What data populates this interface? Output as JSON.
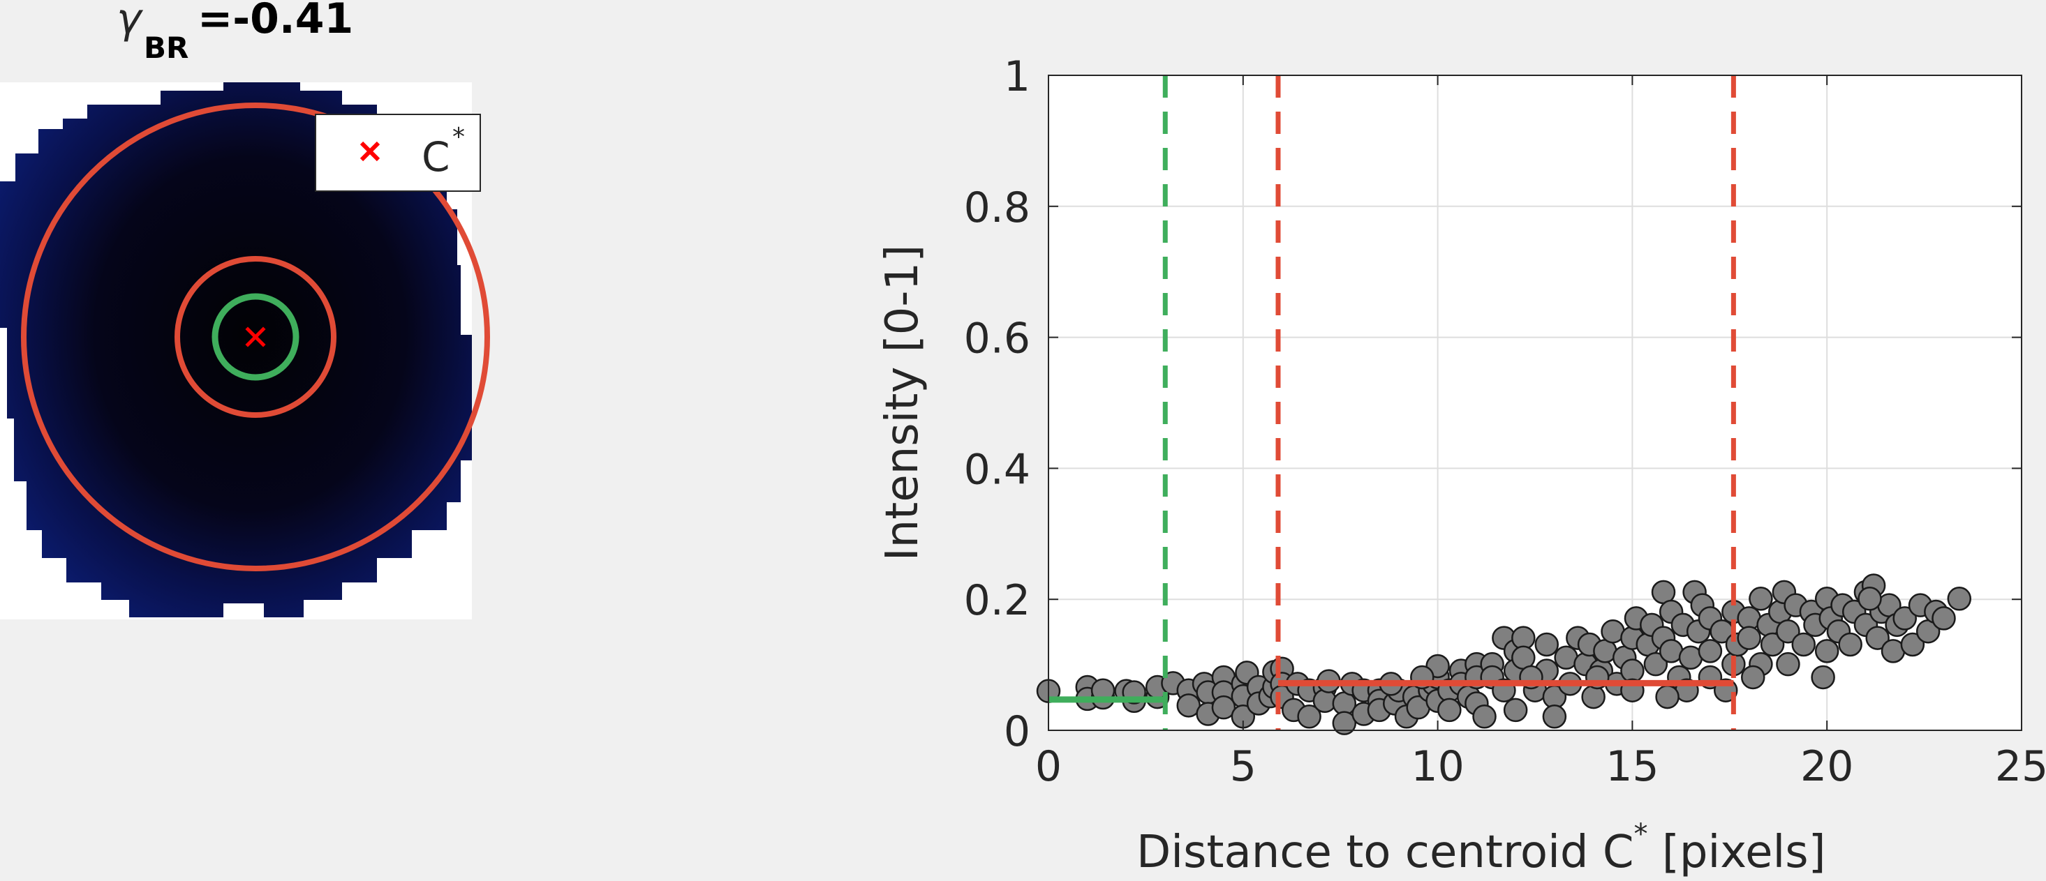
{
  "image_panel": {
    "title_symbol": "γ",
    "title_subscript": "BR",
    "title_value": "=-0.41",
    "legend_marker": "×",
    "legend_label": "C",
    "legend_label_sup": "*",
    "colors": {
      "outer_ring": "#e04b36",
      "middle_ring": "#e04b36",
      "inner_ring": "#3fae5c",
      "centroid_marker": "#ff0000",
      "blob_dark": "#04040e",
      "blob_edge": "#0b1560"
    }
  },
  "chart_data": {
    "type": "scatter",
    "title": "",
    "xlabel": "Distance to centroid C",
    "xlabel_sup": "*",
    "xlabel_suffix": " [pixels]",
    "ylabel": "Intensity [0-1]",
    "xlim": [
      0,
      25
    ],
    "ylim": [
      0,
      1
    ],
    "xticks": [
      0,
      5,
      10,
      15,
      20,
      25
    ],
    "yticks": [
      0,
      0.2,
      0.4,
      0.6,
      0.8,
      1
    ],
    "ytick_labels": [
      "0",
      "0.2",
      "0.4",
      "0.6",
      "0.8",
      "1"
    ],
    "grid": true,
    "marker_color": "#808080",
    "marker_edge": "#1a1a1a",
    "points": [
      [
        0.0,
        0.06
      ],
      [
        1.0,
        0.066
      ],
      [
        1.0,
        0.048
      ],
      [
        1.4,
        0.05
      ],
      [
        1.4,
        0.061
      ],
      [
        2.0,
        0.06
      ],
      [
        2.2,
        0.045
      ],
      [
        2.2,
        0.058
      ],
      [
        2.8,
        0.051
      ],
      [
        2.8,
        0.066
      ],
      [
        3.2,
        0.072
      ],
      [
        3.6,
        0.061
      ],
      [
        3.6,
        0.038
      ],
      [
        4.0,
        0.071
      ],
      [
        4.1,
        0.058
      ],
      [
        4.1,
        0.025
      ],
      [
        4.5,
        0.081
      ],
      [
        4.5,
        0.058
      ],
      [
        4.5,
        0.035
      ],
      [
        5.0,
        0.071
      ],
      [
        5.0,
        0.052
      ],
      [
        5.0,
        0.021
      ],
      [
        5.1,
        0.088
      ],
      [
        5.4,
        0.066
      ],
      [
        5.4,
        0.041
      ],
      [
        5.7,
        0.052
      ],
      [
        5.8,
        0.066
      ],
      [
        5.8,
        0.089
      ],
      [
        6.0,
        0.094
      ],
      [
        6.0,
        0.071
      ],
      [
        6.0,
        0.051
      ],
      [
        6.3,
        0.031
      ],
      [
        6.4,
        0.071
      ],
      [
        6.7,
        0.061
      ],
      [
        6.7,
        0.021
      ],
      [
        7.1,
        0.065
      ],
      [
        7.1,
        0.045
      ],
      [
        7.2,
        0.075
      ],
      [
        7.6,
        0.041
      ],
      [
        7.6,
        0.011
      ],
      [
        7.8,
        0.071
      ],
      [
        8.1,
        0.061
      ],
      [
        8.1,
        0.025
      ],
      [
        8.5,
        0.061
      ],
      [
        8.5,
        0.045
      ],
      [
        8.5,
        0.031
      ],
      [
        8.9,
        0.041
      ],
      [
        9.0,
        0.061
      ],
      [
        9.2,
        0.021
      ],
      [
        9.4,
        0.051
      ],
      [
        9.5,
        0.035
      ],
      [
        9.8,
        0.061
      ],
      [
        9.9,
        0.071
      ],
      [
        10.0,
        0.081
      ],
      [
        10.0,
        0.045
      ],
      [
        10.0,
        0.098
      ],
      [
        10.3,
        0.061
      ],
      [
        10.3,
        0.031
      ],
      [
        10.6,
        0.091
      ],
      [
        10.6,
        0.071
      ],
      [
        10.8,
        0.051
      ],
      [
        11.0,
        0.101
      ],
      [
        11.0,
        0.081
      ],
      [
        11.0,
        0.041
      ],
      [
        11.2,
        0.021
      ],
      [
        11.4,
        0.101
      ],
      [
        11.4,
        0.081
      ],
      [
        11.7,
        0.141
      ],
      [
        11.7,
        0.061
      ],
      [
        12.0,
        0.121
      ],
      [
        12.0,
        0.091
      ],
      [
        12.0,
        0.031
      ],
      [
        12.2,
        0.141
      ],
      [
        12.2,
        0.111
      ],
      [
        12.5,
        0.061
      ],
      [
        12.8,
        0.131
      ],
      [
        12.8,
        0.091
      ],
      [
        13.0,
        0.051
      ],
      [
        13.0,
        0.021
      ],
      [
        13.3,
        0.111
      ],
      [
        13.4,
        0.071
      ],
      [
        13.6,
        0.141
      ],
      [
        13.8,
        0.101
      ],
      [
        13.9,
        0.131
      ],
      [
        14.0,
        0.051
      ],
      [
        14.2,
        0.091
      ],
      [
        14.3,
        0.121
      ],
      [
        14.5,
        0.151
      ],
      [
        14.6,
        0.071
      ],
      [
        14.8,
        0.111
      ],
      [
        15.0,
        0.141
      ],
      [
        15.0,
        0.091
      ],
      [
        15.0,
        0.061
      ],
      [
        15.1,
        0.171
      ],
      [
        15.4,
        0.131
      ],
      [
        15.5,
        0.161
      ],
      [
        15.6,
        0.101
      ],
      [
        15.8,
        0.211
      ],
      [
        15.8,
        0.141
      ],
      [
        16.0,
        0.181
      ],
      [
        16.0,
        0.121
      ],
      [
        16.2,
        0.081
      ],
      [
        16.3,
        0.161
      ],
      [
        16.5,
        0.111
      ],
      [
        16.6,
        0.211
      ],
      [
        16.7,
        0.151
      ],
      [
        16.8,
        0.191
      ],
      [
        17.0,
        0.171
      ],
      [
        17.0,
        0.121
      ],
      [
        17.0,
        0.081
      ],
      [
        17.3,
        0.151
      ],
      [
        17.6,
        0.181
      ],
      [
        17.6,
        0.101
      ],
      [
        17.7,
        0.131
      ],
      [
        18.0,
        0.171
      ],
      [
        18.0,
        0.141
      ],
      [
        18.3,
        0.201
      ],
      [
        18.3,
        0.101
      ],
      [
        18.5,
        0.161
      ],
      [
        18.6,
        0.131
      ],
      [
        18.8,
        0.181
      ],
      [
        18.9,
        0.211
      ],
      [
        19.0,
        0.151
      ],
      [
        19.0,
        0.101
      ],
      [
        19.2,
        0.191
      ],
      [
        19.4,
        0.131
      ],
      [
        19.6,
        0.181
      ],
      [
        19.7,
        0.161
      ],
      [
        20.0,
        0.201
      ],
      [
        20.0,
        0.121
      ],
      [
        20.1,
        0.171
      ],
      [
        20.3,
        0.151
      ],
      [
        20.4,
        0.191
      ],
      [
        20.6,
        0.131
      ],
      [
        20.7,
        0.181
      ],
      [
        21.0,
        0.211
      ],
      [
        21.0,
        0.161
      ],
      [
        21.2,
        0.221
      ],
      [
        21.3,
        0.141
      ],
      [
        21.4,
        0.181
      ],
      [
        21.6,
        0.191
      ],
      [
        21.7,
        0.121
      ],
      [
        21.8,
        0.161
      ],
      [
        22.0,
        0.171
      ],
      [
        22.2,
        0.131
      ],
      [
        22.4,
        0.191
      ],
      [
        22.6,
        0.151
      ],
      [
        22.8,
        0.181
      ],
      [
        23.0,
        0.171
      ],
      [
        23.4,
        0.201
      ],
      [
        19.9,
        0.081
      ],
      [
        21.1,
        0.201
      ],
      [
        16.4,
        0.061
      ],
      [
        18.1,
        0.081
      ],
      [
        17.4,
        0.061
      ],
      [
        15.9,
        0.051
      ],
      [
        14.1,
        0.081
      ],
      [
        12.4,
        0.081
      ],
      [
        9.6,
        0.081
      ],
      [
        8.8,
        0.071
      ]
    ],
    "lines": [
      {
        "type": "vertical-dashed",
        "x": 3.0,
        "color": "#3fae5c"
      },
      {
        "type": "vertical-dashed",
        "x": 5.9,
        "color": "#e04b36"
      },
      {
        "type": "vertical-dashed",
        "x": 17.6,
        "color": "#e04b36"
      },
      {
        "type": "horizontal-segment",
        "x": [
          0.0,
          3.0
        ],
        "y": 0.047,
        "color": "#3fae5c"
      },
      {
        "type": "horizontal-segment",
        "x": [
          5.9,
          17.6
        ],
        "y": 0.072,
        "color": "#e04b36"
      }
    ]
  }
}
